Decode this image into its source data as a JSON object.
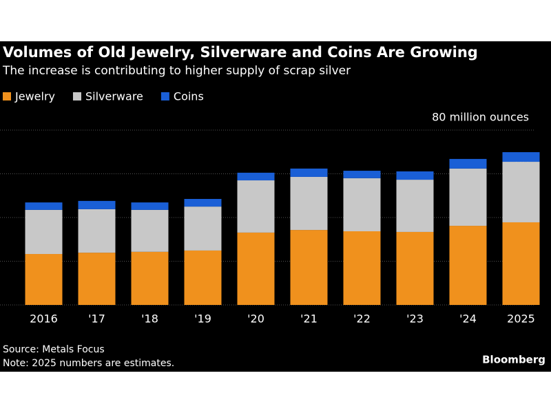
{
  "chart_data": {
    "type": "bar",
    "stacked": true,
    "title": "Volumes of Old Jewelry, Silverware and Coins Are Growing",
    "subtitle": "The increase is contributing to higher supply of scrap silver",
    "categories": [
      "2016",
      "'17",
      "'18",
      "'19",
      "'20",
      "'21",
      "'22",
      "'23",
      "'24",
      "2025"
    ],
    "series": [
      {
        "name": "Jewelry",
        "color": "#f0911d",
        "values": [
          23.3,
          23.9,
          24.3,
          24.9,
          33.1,
          34.3,
          33.7,
          33.4,
          36.2,
          37.8
        ]
      },
      {
        "name": "Silverware",
        "color": "#c8c8c8",
        "values": [
          20.2,
          19.9,
          19.2,
          20.1,
          23.9,
          24.3,
          24.3,
          23.9,
          26.2,
          27.7
        ]
      },
      {
        "name": "Coins",
        "color": "#1a5fd6",
        "values": [
          3.4,
          3.8,
          3.4,
          3.5,
          3.5,
          3.8,
          3.4,
          3.8,
          4.4,
          4.4
        ]
      }
    ],
    "ylim": [
      0,
      80
    ],
    "yticks": [
      0,
      20,
      40,
      60,
      {
        "value": 80,
        "label": "80 million ounces"
      }
    ],
    "grid": true,
    "legend": "top-left",
    "source": "Source: Metals Focus",
    "note": "Note: 2025 numbers are estimates.",
    "brand": "Bloomberg"
  }
}
